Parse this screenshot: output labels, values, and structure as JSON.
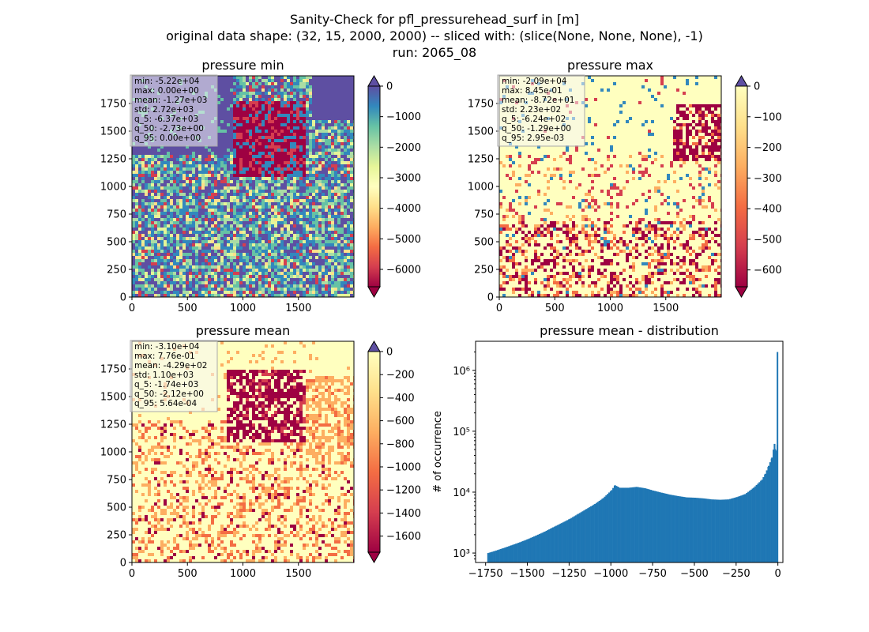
{
  "figure": {
    "title_lines": [
      "Sanity-Check for pfl_pressurehead_surf in [m]",
      "original data shape: (32, 15, 2000, 2000) -- sliced with: (slice(None, None, None), -1)",
      "run: 2065_08"
    ]
  },
  "chart_data": [
    {
      "type": "heatmap",
      "title": "pressure min",
      "cmap": "Spectral",
      "xticks": [
        0,
        500,
        1000,
        1500
      ],
      "yticks": [
        0,
        250,
        500,
        750,
        1000,
        1250,
        1500,
        1750
      ],
      "xlim": [
        0,
        2000
      ],
      "ylim": [
        0,
        2000
      ],
      "colorbar": {
        "ticks": [
          0,
          -1000,
          -2000,
          -3000,
          -4000,
          -5000,
          -6000
        ],
        "range": [
          -6570,
          0
        ],
        "extend": "both"
      },
      "stats": [
        "min: -5.22e+04",
        "max: 0.00e+00",
        "mean: -1.27e+03",
        "std: 2.72e+03",
        "q_5: -6.37e+03",
        "q_50: -2.73e+00",
        "q_95: 0.00e+00"
      ]
    },
    {
      "type": "heatmap",
      "title": "pressure max",
      "cmap": "YlOrRd-Spectral",
      "xticks": [
        0,
        500,
        1000,
        1500
      ],
      "yticks": [
        0,
        250,
        500,
        750,
        1000,
        1250,
        1500,
        1750
      ],
      "xlim": [
        0,
        2000
      ],
      "ylim": [
        0,
        2000
      ],
      "colorbar": {
        "ticks": [
          0,
          -100,
          -200,
          -300,
          -400,
          -500,
          -600
        ],
        "range": [
          -655,
          0
        ],
        "extend": "both"
      },
      "stats": [
        "min: -2.09e+04",
        "max: 8.45e-01",
        "mean: -8.72e+01",
        "std: 2.23e+02",
        "q_5: -6.24e+02",
        "q_50: -1.29e+00",
        "q_95: 2.95e-03"
      ]
    },
    {
      "type": "heatmap",
      "title": "pressure mean",
      "cmap": "YlOrRd-Spectral",
      "xticks": [
        0,
        500,
        1000,
        1500
      ],
      "yticks": [
        0,
        250,
        500,
        750,
        1000,
        1250,
        1500,
        1750
      ],
      "xlim": [
        0,
        2000
      ],
      "ylim": [
        0,
        2000
      ],
      "colorbar": {
        "ticks": [
          0,
          -200,
          -400,
          -600,
          -800,
          -1000,
          -1200,
          -1400,
          -1600
        ],
        "range": [
          -1740,
          0
        ],
        "extend": "both"
      },
      "stats": [
        "min: -3.10e+04",
        "max: 7.76e-01",
        "mean: -4.29e+02",
        "std: 1.10e+03",
        "q_5: -1.74e+03",
        "q_50: -2.12e+00",
        "q_95: 5.64e-04"
      ]
    },
    {
      "type": "bar",
      "title": "pressure mean - distribution",
      "ylabel": "# of occurrence",
      "xlabel": "",
      "xlim": [
        -1810,
        30
      ],
      "ylim": [
        700,
        3000000
      ],
      "yscale": "log",
      "xticks": [
        -1750,
        -1500,
        -1250,
        -1000,
        -750,
        -500,
        -250,
        0
      ],
      "yticks": [
        1000,
        10000,
        100000,
        1000000
      ],
      "ytick_labels": [
        "10³",
        "10⁴",
        "10⁵",
        "10⁶"
      ],
      "bar_color": "#1f77b4",
      "x": [
        -1740,
        -1700,
        -1650,
        -1600,
        -1550,
        -1500,
        -1450,
        -1400,
        -1350,
        -1300,
        -1250,
        -1200,
        -1150,
        -1100,
        -1050,
        -1000,
        -980,
        -950,
        -900,
        -850,
        -800,
        -750,
        -700,
        -650,
        -600,
        -550,
        -500,
        -450,
        -400,
        -350,
        -300,
        -250,
        -200,
        -150,
        -100,
        -80,
        -60,
        -40,
        -25,
        -15,
        -12,
        -8,
        -5,
        -3,
        0
      ],
      "values": [
        1000,
        1080,
        1200,
        1340,
        1500,
        1700,
        1950,
        2250,
        2650,
        3100,
        3650,
        4400,
        5300,
        6400,
        8000,
        10800,
        13000,
        11800,
        11800,
        12200,
        11600,
        10600,
        9800,
        9100,
        8600,
        8200,
        8100,
        7900,
        7600,
        7500,
        7600,
        8300,
        9300,
        11800,
        16000,
        20000,
        27000,
        37000,
        62000,
        50000,
        48000,
        60000,
        120000,
        300000,
        2000000
      ]
    }
  ]
}
